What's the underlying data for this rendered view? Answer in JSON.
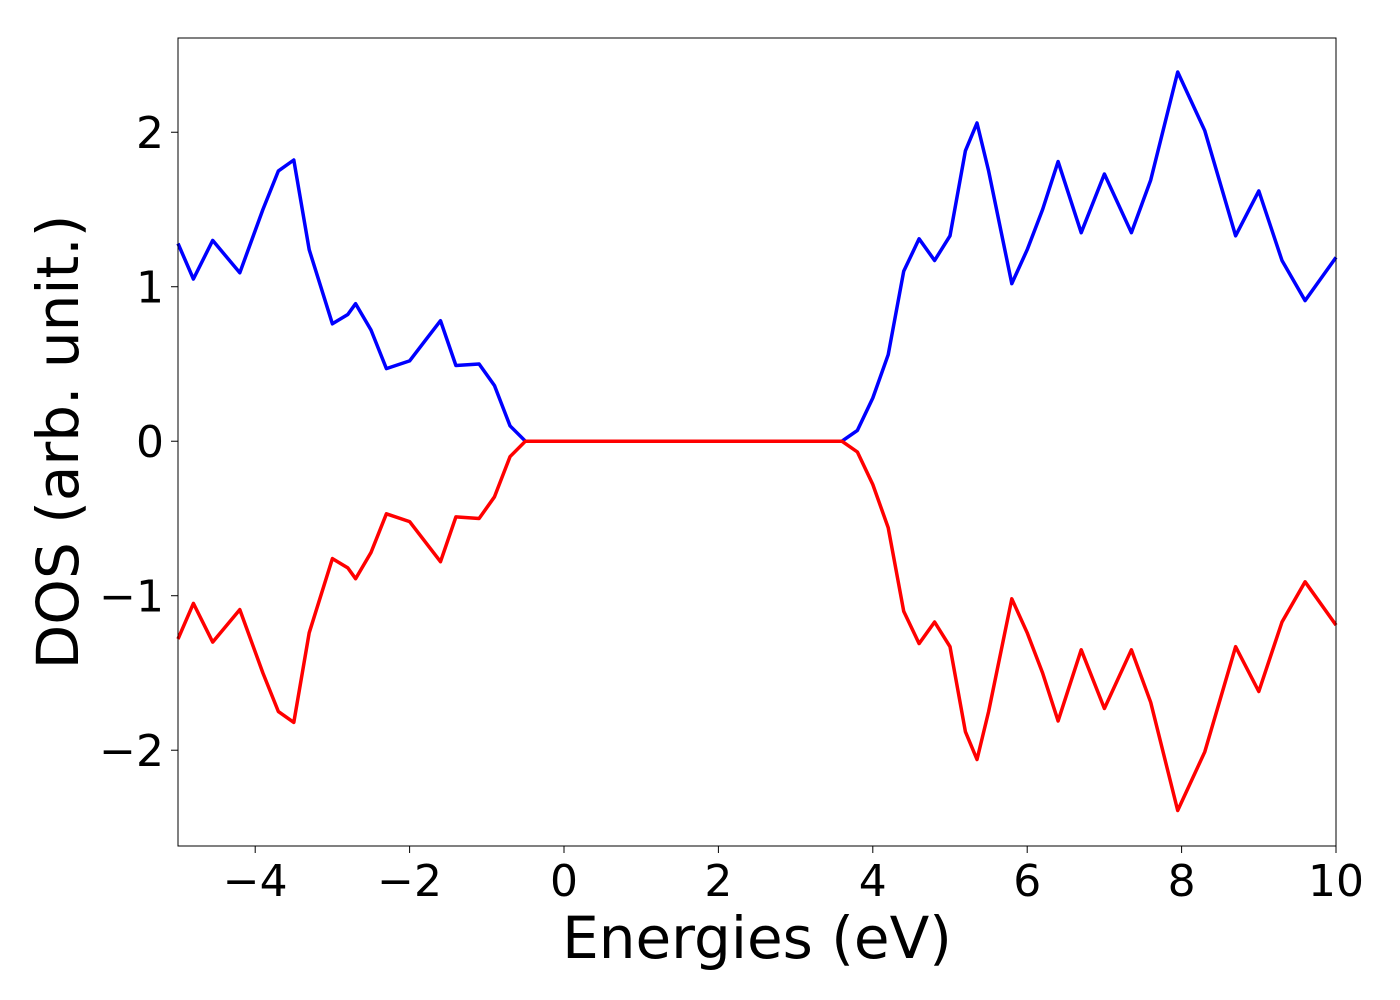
{
  "chart_data": {
    "type": "line",
    "x_label": "Energies (eV)",
    "y_label": "DOS (arb. unit.)",
    "x": [
      -5,
      -4.8,
      -4.55,
      -4.2,
      -3.9,
      -3.7,
      -3.5,
      -3.3,
      -3.0,
      -2.8,
      -2.7,
      -2.5,
      -2.3,
      -2.0,
      -1.8,
      -1.6,
      -1.4,
      -1.1,
      -0.9,
      -0.7,
      -0.5,
      0,
      1,
      2,
      3,
      3.6,
      3.8,
      4.0,
      4.2,
      4.4,
      4.6,
      4.8,
      5.0,
      5.2,
      5.35,
      5.5,
      5.8,
      6.0,
      6.2,
      6.4,
      6.7,
      7.0,
      7.35,
      7.6,
      7.95,
      8.3,
      8.7,
      9.0,
      9.3,
      9.6,
      10
    ],
    "series": [
      {
        "color": "#0000ff",
        "values": [
          1.28,
          1.05,
          1.3,
          1.09,
          1.5,
          1.75,
          1.82,
          1.24,
          0.76,
          0.82,
          0.89,
          0.72,
          0.47,
          0.52,
          0.65,
          0.78,
          0.49,
          0.5,
          0.36,
          0.1,
          0.0,
          0,
          0,
          0,
          0,
          0.0,
          0.07,
          0.28,
          0.56,
          1.1,
          1.31,
          1.17,
          1.33,
          1.88,
          2.06,
          1.75,
          1.02,
          1.24,
          1.5,
          1.81,
          1.35,
          1.73,
          1.35,
          1.69,
          2.39,
          2.01,
          1.33,
          1.62,
          1.17,
          0.91,
          1.19
        ]
      },
      {
        "color": "#ff0000",
        "values": [
          -1.28,
          -1.05,
          -1.3,
          -1.09,
          -1.5,
          -1.75,
          -1.82,
          -1.24,
          -0.76,
          -0.82,
          -0.89,
          -0.72,
          -0.47,
          -0.52,
          -0.65,
          -0.78,
          -0.49,
          -0.5,
          -0.36,
          -0.1,
          0.0,
          0,
          0,
          0,
          0,
          0.0,
          -0.07,
          -0.28,
          -0.56,
          -1.1,
          -1.31,
          -1.17,
          -1.33,
          -1.88,
          -2.06,
          -1.75,
          -1.02,
          -1.24,
          -1.5,
          -1.81,
          -1.35,
          -1.73,
          -1.35,
          -1.69,
          -2.39,
          -2.01,
          -1.33,
          -1.62,
          -1.17,
          -0.91,
          -1.19
        ]
      }
    ],
    "xlim": [
      -5,
      10
    ],
    "ylim": [
      -2.62,
      2.61
    ],
    "xticks": [
      {
        "value": -4,
        "label": "−4"
      },
      {
        "value": -2,
        "label": "−2"
      },
      0,
      2,
      4,
      6,
      8,
      10
    ],
    "yticks": [
      {
        "value": -2,
        "label": "−2"
      },
      {
        "value": -1,
        "label": "−1"
      },
      0,
      1,
      2
    ]
  }
}
